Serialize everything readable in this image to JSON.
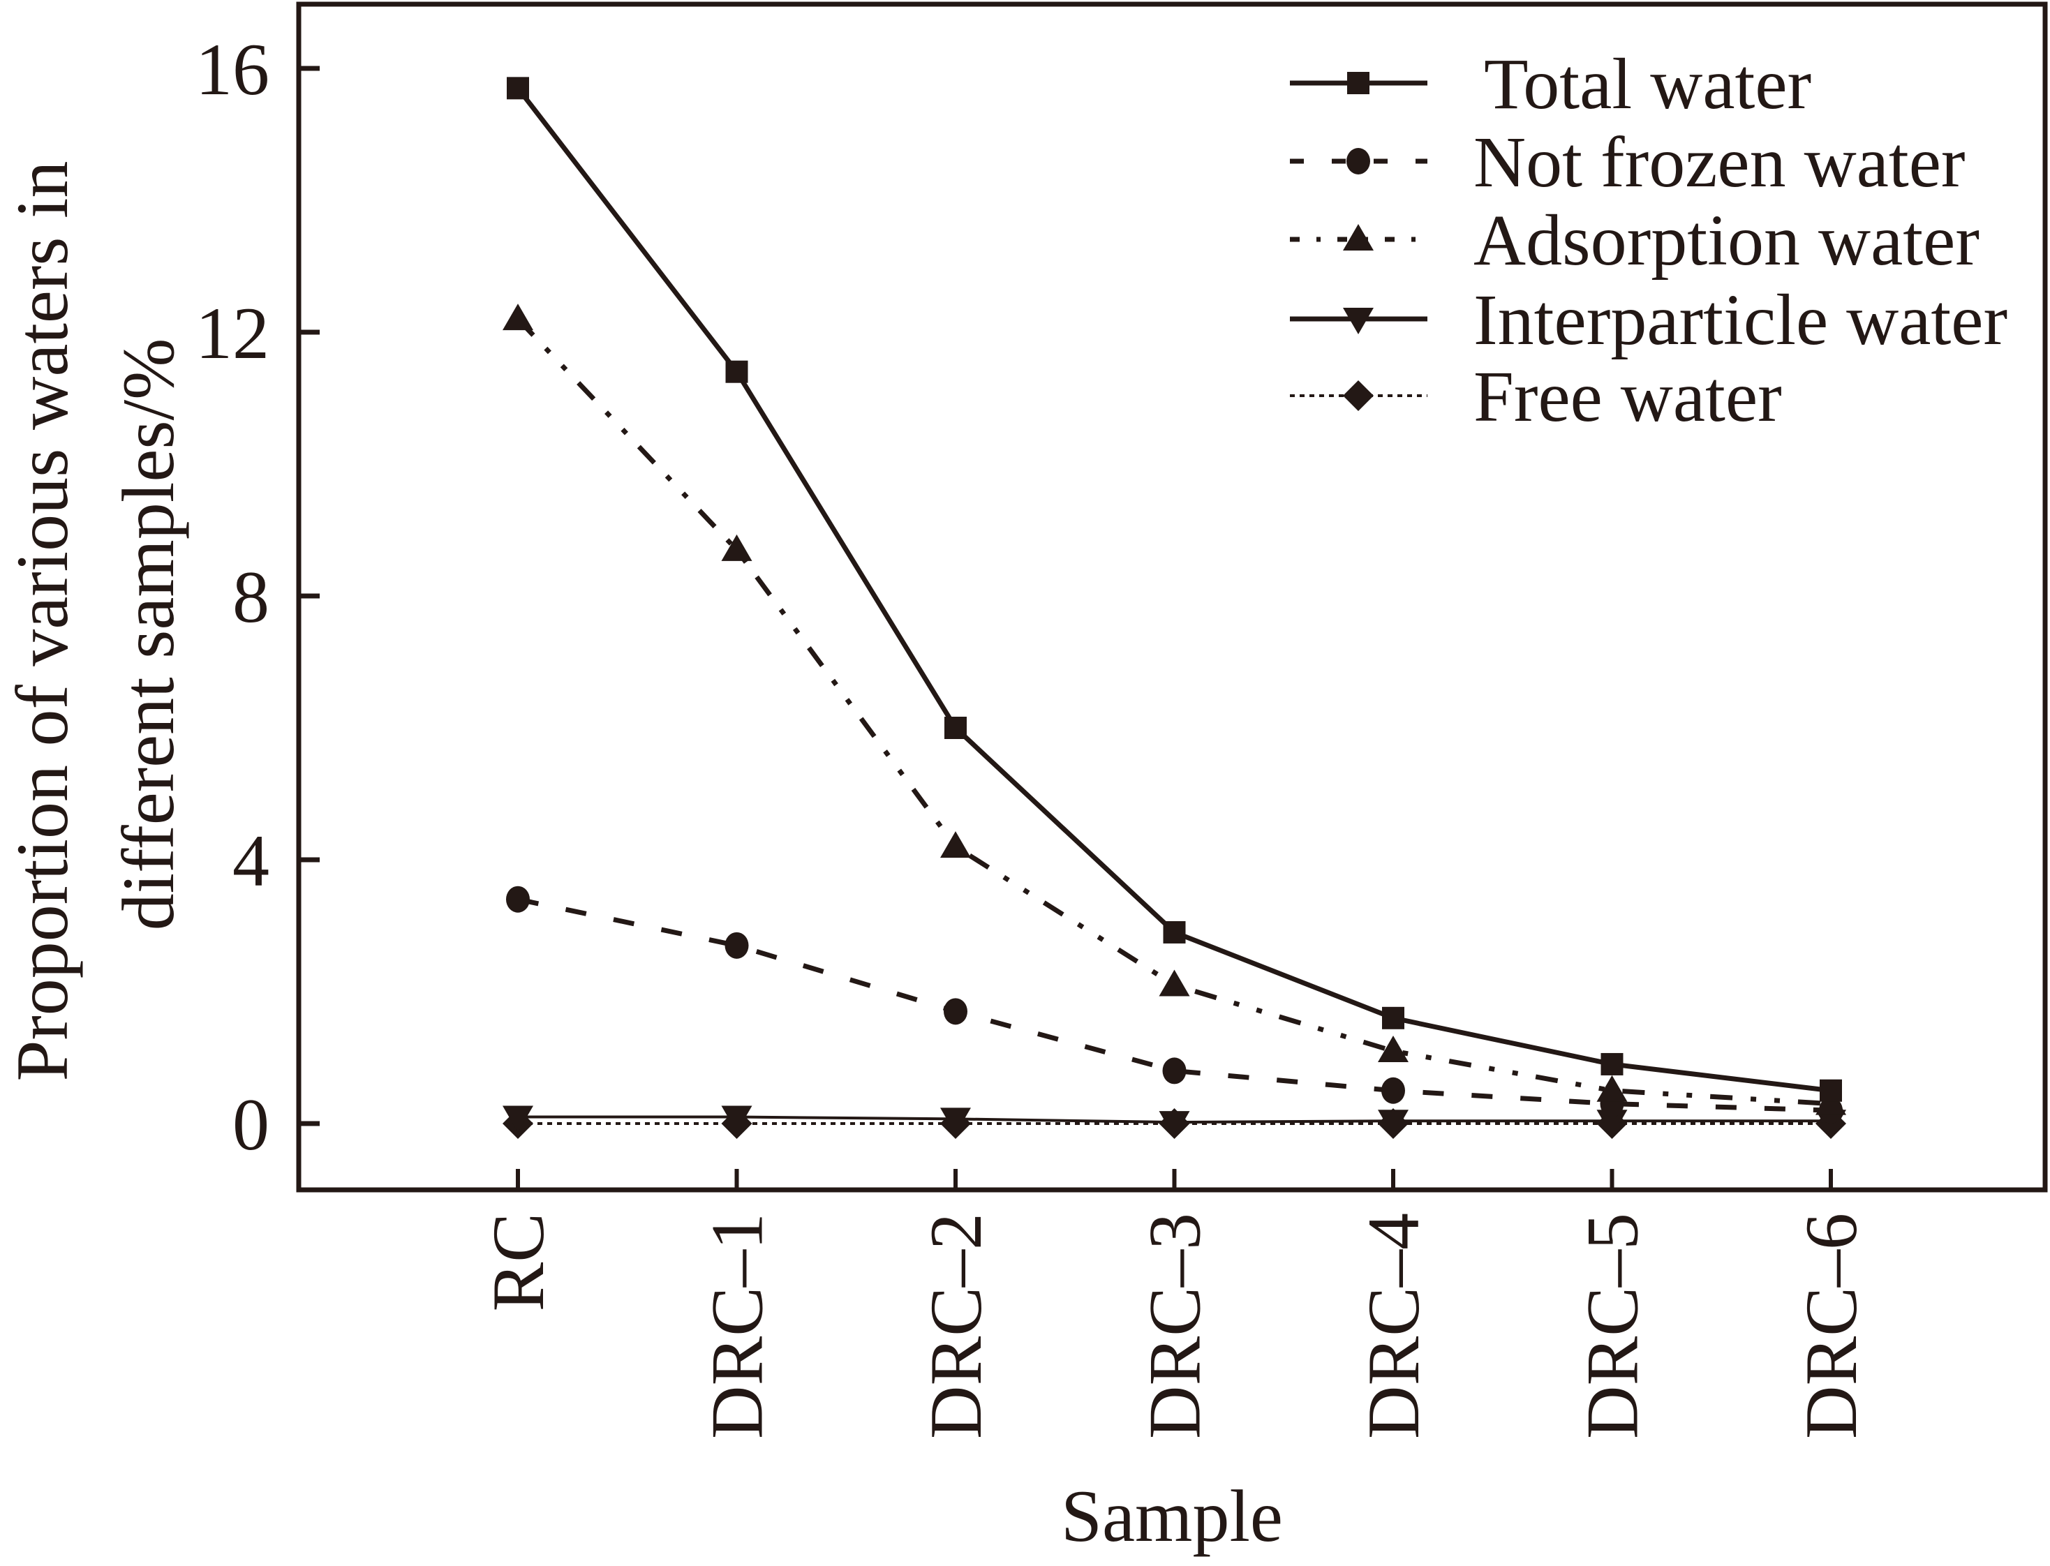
{
  "chart_data": {
    "type": "line",
    "title": "",
    "xlabel": "Sample",
    "ylabel_lines": [
      "Proportion of various waters in",
      "different samples/%"
    ],
    "categories": [
      "RC",
      "DRC–1",
      "DRC–2",
      "DRC–3",
      "DRC–4",
      "DRC–5",
      "DRC–6"
    ],
    "ylim": [
      -1.2,
      16.8
    ],
    "yticks": [
      0,
      4,
      8,
      12,
      16
    ],
    "ytick_labels": [
      "0",
      "4",
      "8",
      "12",
      "16"
    ],
    "grid": false,
    "legend_position": "top-right",
    "series": [
      {
        "name": "Total water",
        "marker": "square",
        "line": "solid",
        "values": [
          15.7,
          11.4,
          6.0,
          2.9,
          1.6,
          0.9,
          0.5
        ]
      },
      {
        "name": "Not frozen water",
        "marker": "circle",
        "line": "dashed",
        "values": [
          3.4,
          2.7,
          1.7,
          0.8,
          0.5,
          0.3,
          0.2
        ]
      },
      {
        "name": "Adsorption water",
        "marker": "triangle-up",
        "line": "dash-dot-dot",
        "values": [
          12.2,
          8.7,
          4.2,
          2.1,
          1.1,
          0.5,
          0.3
        ]
      },
      {
        "name": "Interparticle water",
        "marker": "triangle-down",
        "line": "solid-thin",
        "values": [
          0.1,
          0.1,
          0.07,
          0.02,
          0.04,
          0.04,
          0.04
        ]
      },
      {
        "name": "Free water",
        "marker": "diamond",
        "line": "dotted",
        "values": [
          0.0,
          0.0,
          0.0,
          0.0,
          0.0,
          0.0,
          0.0
        ]
      }
    ],
    "colors": {
      "ink": "#231815",
      "background": "#ffffff"
    }
  }
}
